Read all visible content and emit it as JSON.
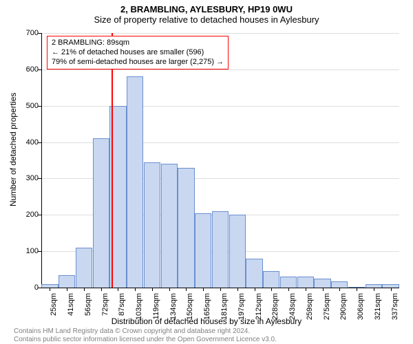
{
  "title": "2, BRAMBLING, AYLESBURY, HP19 0WU",
  "subtitle": "Size of property relative to detached houses in Aylesbury",
  "ylabel": "Number of detached properties",
  "xlabel": "Distribution of detached houses by size in Aylesbury",
  "title_fontsize": 13,
  "subtitle_fontsize": 13,
  "axis_label_fontsize": 12,
  "tick_fontsize": 11,
  "info_fontsize": 11,
  "licence_fontsize": 10,
  "chart": {
    "type": "bar",
    "ylim": [
      0,
      700
    ],
    "ytick_step": 100,
    "yticks": [
      0,
      100,
      200,
      300,
      400,
      500,
      600,
      700
    ],
    "categories": [
      "25sqm",
      "41sqm",
      "56sqm",
      "72sqm",
      "87sqm",
      "103sqm",
      "119sqm",
      "134sqm",
      "150sqm",
      "165sqm",
      "181sqm",
      "197sqm",
      "212sqm",
      "228sqm",
      "243sqm",
      "259sqm",
      "275sqm",
      "290sqm",
      "306sqm",
      "321sqm",
      "337sqm"
    ],
    "values": [
      10,
      35,
      110,
      410,
      500,
      580,
      345,
      340,
      330,
      205,
      210,
      200,
      80,
      45,
      30,
      30,
      25,
      18,
      0,
      10,
      10
    ],
    "bar_fill": "#c9d8f0",
    "bar_stroke": "#6a8fd0",
    "background_color": "#ffffff",
    "grid_color": "#dddddd",
    "axis_color": "#000000",
    "bar_width_ratio": 0.98,
    "marker": {
      "index_between": [
        3,
        4
      ],
      "fraction": 0.13,
      "color": "#ff0000",
      "width": 2
    }
  },
  "info_box": {
    "border_color": "#ff0000",
    "border_width": 1,
    "lines": [
      "2 BRAMBLING: 89sqm",
      "← 21% of detached houses are smaller (596)",
      "79% of semi-detached houses are larger (2,275) →"
    ]
  },
  "licence": {
    "line1": "Contains HM Land Registry data © Crown copyright and database right 2024.",
    "line2": "Contains public sector information licensed under the Open Government Licence v3.0."
  }
}
